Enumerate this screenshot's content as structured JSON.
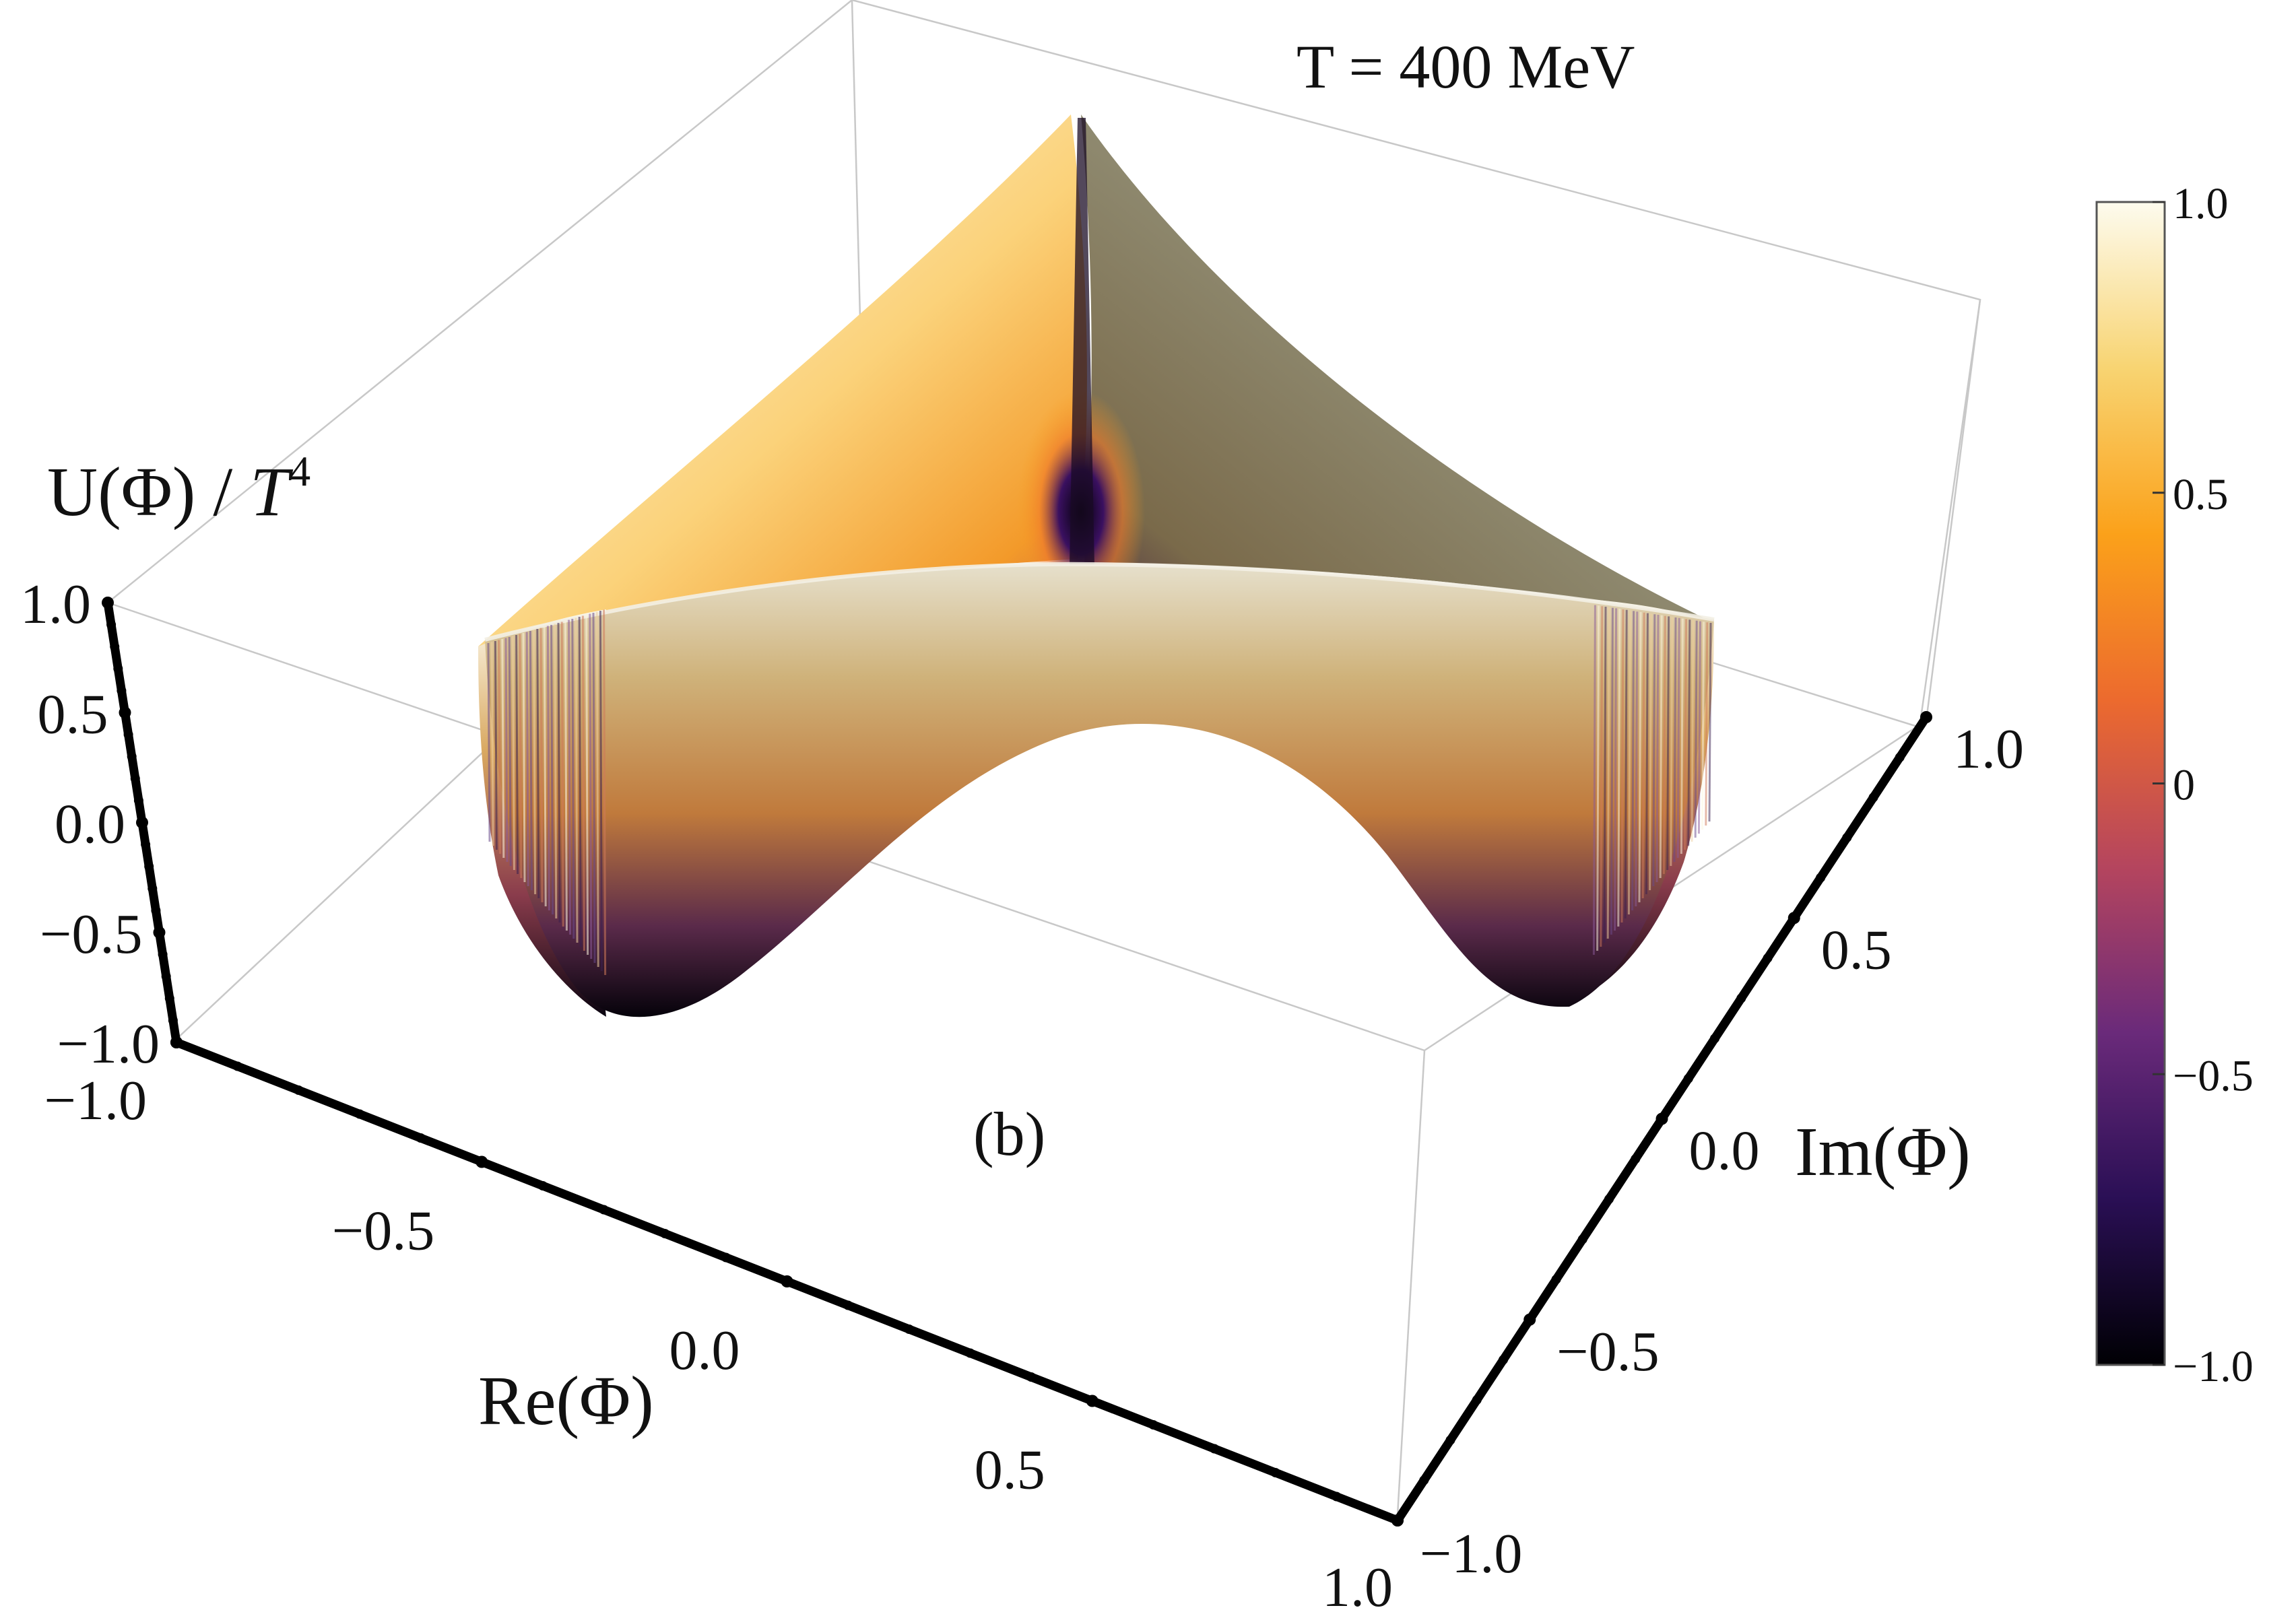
{
  "chart_data": {
    "type": "surface3d",
    "annotation_temperature": "T = 400 MeV",
    "panel_label": "(b)",
    "xlabel": "Re(Φ)",
    "ylabel": "Im(Φ)",
    "zlabel_main": "U(Φ) / ",
    "zlabel_var": "T",
    "zlabel_exp": "4",
    "x_range": [
      -1.0,
      1.0
    ],
    "y_range": [
      -1.0,
      1.0
    ],
    "z_range": [
      -1.0,
      1.0
    ],
    "x_ticks": [
      {
        "value": -1.0,
        "label": "−1.0"
      },
      {
        "value": -0.5,
        "label": "−0.5"
      },
      {
        "value": 0.0,
        "label": "0.0"
      },
      {
        "value": 0.5,
        "label": "0.5"
      },
      {
        "value": 1.0,
        "label": "1.0"
      }
    ],
    "y_ticks": [
      {
        "value": -1.0,
        "label": "−1.0"
      },
      {
        "value": -0.5,
        "label": "−0.5"
      },
      {
        "value": 0.0,
        "label": "0.0"
      },
      {
        "value": 0.5,
        "label": "0.5"
      },
      {
        "value": 1.0,
        "label": "1.0"
      }
    ],
    "z_ticks": [
      {
        "value": 1.0,
        "label": "1.0"
      },
      {
        "value": 0.5,
        "label": "0.5"
      },
      {
        "value": 0.0,
        "label": "0.0"
      },
      {
        "value": -0.5,
        "label": "−0.5"
      },
      {
        "value": -1.0,
        "label": "−1.0"
      }
    ],
    "colorbar": {
      "range": [
        -1.0,
        1.0
      ],
      "ticks": [
        {
          "value": 1.0,
          "label": "1.0"
        },
        {
          "value": 0.5,
          "label": "0.5"
        },
        {
          "value": 0.0,
          "label": "0"
        },
        {
          "value": -0.5,
          "label": "−0.5"
        },
        {
          "value": -1.0,
          "label": "−1.0"
        }
      ],
      "colors": [
        "#000004",
        "#2a0f55",
        "#6a2a7a",
        "#b5455e",
        "#ec6a2e",
        "#fba11a",
        "#f8d472",
        "#fdfbee"
      ]
    },
    "surface": {
      "shape": "U(Φ) over the region |Φ| ≤ 1 with Z3 symmetry; local maximum near Φ = 0, peak near Φ = -1, three minima near |Φ| ≈ 0.6 on the Φ = 0 ridge, rising to about 0.6 at the boundary",
      "z_center": 0.35,
      "z_minimum": -1.0,
      "z_boundary": 0.6,
      "z_peak": 1.0
    }
  }
}
